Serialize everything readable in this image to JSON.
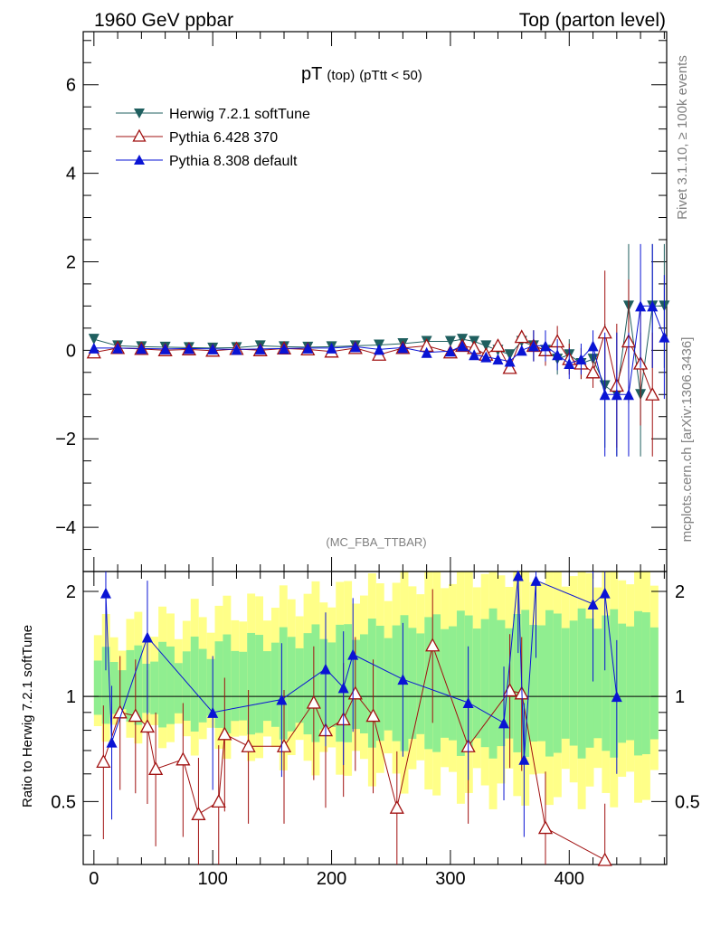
{
  "header": {
    "left": "1960 GeV ppbar",
    "right": "Top (parton level)"
  },
  "side": {
    "rivet": "Rivet 3.1.10, ≥ 100k events",
    "mcplots": "mcplots.cern.ch [arXiv:1306.3436]"
  },
  "chart_data": {
    "type": "line",
    "title_main": "pT",
    "title_sub": "(top)",
    "title_cut": "(pTtt < 50)",
    "analysis_label": "(MC_FBA_TTBAR)",
    "ratio_ylabel": "Ratio to Herwig 7.2.1 softTune",
    "xlim": [
      -9,
      482
    ],
    "ylim_main": [
      -5,
      7.2
    ],
    "ylim_ratio": [
      0.33,
      2.28
    ],
    "x_ticks": [
      "0",
      "100",
      "200",
      "300",
      "400"
    ],
    "y_ticks_main": [
      "−4",
      "−2",
      "0",
      "2",
      "4",
      "6"
    ],
    "y_ticks_ratio": [
      "0.5",
      "1",
      "2"
    ],
    "series": [
      {
        "name": "Herwig 7.2.1 softTune",
        "color": "#1f5f5f",
        "marker": "triangle-down-filled",
        "x": [
          0,
          20,
          40,
          60,
          80,
          100,
          120,
          140,
          160,
          180,
          200,
          220,
          240,
          260,
          280,
          300,
          310,
          320,
          330,
          340,
          350,
          360,
          370,
          380,
          390,
          400,
          410,
          420,
          430,
          440,
          450,
          460,
          470,
          480
        ],
        "y": [
          0.25,
          0.1,
          0.08,
          0.07,
          0.06,
          0.05,
          0.06,
          0.1,
          0.08,
          0.07,
          0.08,
          0.1,
          0.12,
          0.15,
          0.2,
          0.2,
          0.25,
          0.2,
          0.1,
          0.0,
          -0.1,
          0.2,
          0.1,
          0.0,
          -0.2,
          -0.1,
          -0.3,
          -0.2,
          -0.8,
          -1.0,
          1.0,
          -1.0,
          1.0,
          1.0
        ]
      },
      {
        "name": "Pythia 6.428 370",
        "color": "#a01010",
        "marker": "triangle-up-open",
        "x": [
          0,
          20,
          40,
          60,
          80,
          100,
          120,
          140,
          160,
          180,
          200,
          220,
          240,
          260,
          280,
          300,
          310,
          320,
          330,
          340,
          350,
          360,
          370,
          380,
          390,
          400,
          410,
          420,
          430,
          440,
          450,
          460,
          470
        ],
        "y": [
          -0.05,
          0.05,
          0.03,
          0.0,
          0.02,
          -0.01,
          0.03,
          0.0,
          0.04,
          0.02,
          -0.03,
          0.05,
          -0.1,
          0.05,
          0.1,
          -0.05,
          0.1,
          0.05,
          -0.1,
          0.1,
          -0.4,
          0.3,
          0.1,
          0.0,
          0.2,
          -0.2,
          -0.3,
          -0.5,
          0.4,
          -0.8,
          0.2,
          -0.3,
          -1.0
        ]
      },
      {
        "name": "Pythia 8.308 default",
        "color": "#0a14d4",
        "marker": "triangle-up-filled",
        "x": [
          0,
          20,
          40,
          60,
          80,
          100,
          120,
          140,
          160,
          180,
          200,
          220,
          240,
          260,
          280,
          300,
          310,
          320,
          330,
          340,
          350,
          360,
          370,
          380,
          390,
          400,
          410,
          420,
          430,
          440,
          450,
          460,
          470,
          480
        ],
        "y": [
          0.05,
          0.05,
          0.04,
          0.03,
          0.04,
          0.03,
          0.02,
          0.03,
          0.04,
          0.05,
          0.05,
          0.08,
          0.02,
          0.06,
          -0.05,
          -0.02,
          0.1,
          -0.1,
          -0.15,
          -0.2,
          -0.25,
          0.0,
          0.1,
          0.1,
          -0.1,
          -0.3,
          -0.2,
          0.1,
          -1.0,
          -1.0,
          -1.0,
          1.0,
          1.0,
          0.3
        ]
      }
    ],
    "ratio_series": [
      {
        "name": "Pythia 6.428 370",
        "x": [
          8,
          22,
          35,
          45,
          52,
          75,
          88,
          105,
          110,
          130,
          160,
          185,
          195,
          210,
          220,
          235,
          255,
          285,
          315,
          350,
          360,
          380,
          430
        ],
        "y": [
          0.65,
          0.9,
          0.88,
          0.82,
          0.62,
          0.66,
          0.46,
          0.5,
          0.78,
          0.72,
          0.72,
          0.96,
          0.8,
          0.86,
          1.02,
          0.88,
          0.48,
          1.4,
          0.72,
          1.04,
          1.02,
          0.42,
          0.34
        ]
      },
      {
        "name": "Pythia 8.308 default",
        "x": [
          10,
          15,
          45,
          100,
          158,
          195,
          210,
          218,
          260,
          315,
          345,
          357,
          362,
          372,
          420,
          430,
          440
        ],
        "y": [
          1.98,
          0.74,
          1.48,
          0.9,
          0.98,
          1.2,
          1.06,
          1.32,
          1.12,
          0.96,
          0.84,
          2.22,
          0.66,
          2.15,
          1.84,
          1.98,
          1.0
        ]
      }
    ]
  }
}
